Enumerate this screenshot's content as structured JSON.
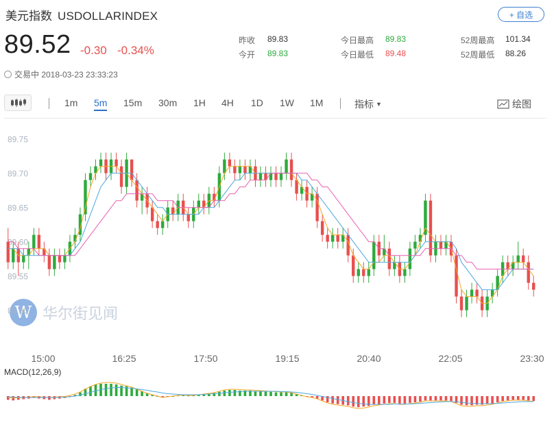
{
  "header": {
    "name": "美元指数",
    "symbol": "USDOLLARINDEX",
    "add_button": "+ 自选",
    "price": "89.52",
    "change": "-0.30",
    "change_pct": "-0.34%",
    "status": "交易中 2018-03-23 23:33:23"
  },
  "stats": [
    {
      "label": "昨收",
      "value": "89.83",
      "tone": "neutral"
    },
    {
      "label": "今开",
      "value": "89.83",
      "tone": "up"
    },
    {
      "label": "今日最高",
      "value": "89.83",
      "tone": "up"
    },
    {
      "label": "今日最低",
      "value": "89.48",
      "tone": "down"
    },
    {
      "label": "52周最高",
      "value": "101.34",
      "tone": "neutral"
    },
    {
      "label": "52周最低",
      "value": "88.26",
      "tone": "neutral"
    }
  ],
  "toolbar": {
    "timeframes": [
      "1m",
      "5m",
      "15m",
      "30m",
      "1H",
      "4H",
      "1D",
      "1W",
      "1M"
    ],
    "active_timeframe": "5m",
    "indicator_label": "指标",
    "draw_label": "绘图"
  },
  "watermark": {
    "logo_letter": "W",
    "text": "华尔街见闻"
  },
  "colors": {
    "up": "#2daa3c",
    "down": "#e84f4f",
    "accent": "#2a6fc9",
    "ma_fast": "#f5a623",
    "ma_mid": "#4aa8e0",
    "ma_slow": "#e85fb0"
  },
  "chart_data": {
    "type": "candlestick",
    "y_ticks": [
      "89.75",
      "89.70",
      "89.65",
      "89.60",
      "89.55",
      "89.50"
    ],
    "ylim": [
      89.4867,
      89.7667
    ],
    "x_ticks": [
      "15:00",
      "16:25",
      "17:50",
      "19:15",
      "20:40",
      "22:05",
      "23:30"
    ],
    "macd_label": "MACD(12,26,9)",
    "candles": [
      [
        89.6,
        89.57,
        89.62,
        89.56
      ],
      [
        89.57,
        89.59,
        89.6,
        89.56
      ],
      [
        89.59,
        89.57,
        89.6,
        89.55
      ],
      [
        89.57,
        89.58,
        89.59,
        89.56
      ],
      [
        89.58,
        89.59,
        89.6,
        89.56
      ],
      [
        89.59,
        89.61,
        89.62,
        89.58
      ],
      [
        89.61,
        89.59,
        89.62,
        89.58
      ],
      [
        89.59,
        89.58,
        89.6,
        89.57
      ],
      [
        89.58,
        89.56,
        89.59,
        89.55
      ],
      [
        89.56,
        89.58,
        89.59,
        89.55
      ],
      [
        89.58,
        89.57,
        89.59,
        89.56
      ],
      [
        89.57,
        89.58,
        89.59,
        89.56
      ],
      [
        89.58,
        89.6,
        89.61,
        89.57
      ],
      [
        89.6,
        89.61,
        89.62,
        89.59
      ],
      [
        89.61,
        89.64,
        89.65,
        89.6
      ],
      [
        89.64,
        89.69,
        89.7,
        89.63
      ],
      [
        89.69,
        89.7,
        89.71,
        89.68
      ],
      [
        89.7,
        89.71,
        89.72,
        89.69
      ],
      [
        89.71,
        89.72,
        89.73,
        89.7
      ],
      [
        89.72,
        89.7,
        89.73,
        89.69
      ],
      [
        89.7,
        89.72,
        89.73,
        89.69
      ],
      [
        89.72,
        89.71,
        89.73,
        89.7
      ],
      [
        89.71,
        89.68,
        89.72,
        89.67
      ],
      [
        89.68,
        89.72,
        89.73,
        89.67
      ],
      [
        89.72,
        89.69,
        89.72,
        89.68
      ],
      [
        89.69,
        89.66,
        89.7,
        89.65
      ],
      [
        89.66,
        89.67,
        89.68,
        89.64
      ],
      [
        89.67,
        89.65,
        89.68,
        89.64
      ],
      [
        89.65,
        89.63,
        89.66,
        89.62
      ],
      [
        89.63,
        89.62,
        89.64,
        89.61
      ],
      [
        89.62,
        89.63,
        89.64,
        89.61
      ],
      [
        89.63,
        89.65,
        89.66,
        89.62
      ],
      [
        89.65,
        89.64,
        89.66,
        89.63
      ],
      [
        89.64,
        89.66,
        89.67,
        89.63
      ],
      [
        89.66,
        89.64,
        89.67,
        89.63
      ],
      [
        89.64,
        89.63,
        89.65,
        89.62
      ],
      [
        89.63,
        89.65,
        89.66,
        89.62
      ],
      [
        89.65,
        89.66,
        89.67,
        89.64
      ],
      [
        89.66,
        89.65,
        89.67,
        89.64
      ],
      [
        89.65,
        89.67,
        89.68,
        89.64
      ],
      [
        89.67,
        89.66,
        89.68,
        89.65
      ],
      [
        89.66,
        89.7,
        89.71,
        89.65
      ],
      [
        89.7,
        89.72,
        89.73,
        89.69
      ],
      [
        89.72,
        89.71,
        89.73,
        89.7
      ],
      [
        89.71,
        89.7,
        89.72,
        89.69
      ],
      [
        89.7,
        89.71,
        89.72,
        89.69
      ],
      [
        89.71,
        89.7,
        89.72,
        89.69
      ],
      [
        89.7,
        89.71,
        89.72,
        89.69
      ],
      [
        89.71,
        89.69,
        89.72,
        89.68
      ],
      [
        89.69,
        89.7,
        89.71,
        89.68
      ],
      [
        89.7,
        89.69,
        89.71,
        89.68
      ],
      [
        89.69,
        89.7,
        89.71,
        89.68
      ],
      [
        89.7,
        89.69,
        89.71,
        89.68
      ],
      [
        89.69,
        89.7,
        89.71,
        89.68
      ],
      [
        89.7,
        89.72,
        89.73,
        89.69
      ],
      [
        89.72,
        89.69,
        89.73,
        89.68
      ],
      [
        89.69,
        89.67,
        89.7,
        89.66
      ],
      [
        89.67,
        89.68,
        89.69,
        89.66
      ],
      [
        89.68,
        89.66,
        89.69,
        89.65
      ],
      [
        89.66,
        89.67,
        89.68,
        89.65
      ],
      [
        89.67,
        89.63,
        89.68,
        89.62
      ],
      [
        89.63,
        89.61,
        89.64,
        89.6
      ],
      [
        89.61,
        89.6,
        89.62,
        89.59
      ],
      [
        89.6,
        89.61,
        89.62,
        89.59
      ],
      [
        89.61,
        89.6,
        89.62,
        89.59
      ],
      [
        89.6,
        89.61,
        89.62,
        89.59
      ],
      [
        89.61,
        89.58,
        89.62,
        89.57
      ],
      [
        89.58,
        89.55,
        89.59,
        89.54
      ],
      [
        89.55,
        89.56,
        89.57,
        89.54
      ],
      [
        89.56,
        89.55,
        89.57,
        89.54
      ],
      [
        89.55,
        89.56,
        89.57,
        89.54
      ],
      [
        89.56,
        89.6,
        89.61,
        89.55
      ],
      [
        89.6,
        89.58,
        89.61,
        89.57
      ],
      [
        89.58,
        89.59,
        89.61,
        89.57
      ],
      [
        89.59,
        89.56,
        89.6,
        89.55
      ],
      [
        89.56,
        89.57,
        89.58,
        89.55
      ],
      [
        89.57,
        89.55,
        89.58,
        89.54
      ],
      [
        89.55,
        89.56,
        89.57,
        89.54
      ],
      [
        89.56,
        89.59,
        89.6,
        89.55
      ],
      [
        89.59,
        89.6,
        89.61,
        89.58
      ],
      [
        89.6,
        89.61,
        89.62,
        89.59
      ],
      [
        89.61,
        89.66,
        89.67,
        89.6
      ],
      [
        89.66,
        89.58,
        89.67,
        89.57
      ],
      [
        89.58,
        89.6,
        89.61,
        89.57
      ],
      [
        89.6,
        89.59,
        89.61,
        89.58
      ],
      [
        89.59,
        89.6,
        89.61,
        89.58
      ],
      [
        89.6,
        89.58,
        89.61,
        89.57
      ],
      [
        89.58,
        89.52,
        89.59,
        89.51
      ],
      [
        89.52,
        89.5,
        89.53,
        89.49
      ],
      [
        89.5,
        89.52,
        89.53,
        89.49
      ],
      [
        89.52,
        89.53,
        89.54,
        89.51
      ],
      [
        89.53,
        89.52,
        89.54,
        89.51
      ],
      [
        89.52,
        89.5,
        89.53,
        89.49
      ],
      [
        89.5,
        89.52,
        89.53,
        89.49
      ],
      [
        89.52,
        89.53,
        89.54,
        89.51
      ],
      [
        89.53,
        89.55,
        89.56,
        89.52
      ],
      [
        89.55,
        89.57,
        89.58,
        89.54
      ],
      [
        89.57,
        89.56,
        89.58,
        89.55
      ],
      [
        89.56,
        89.57,
        89.58,
        89.55
      ],
      [
        89.57,
        89.58,
        89.6,
        89.56
      ],
      [
        89.58,
        89.57,
        89.59,
        89.56
      ],
      [
        89.57,
        89.54,
        89.58,
        89.53
      ],
      [
        89.54,
        89.53,
        89.55,
        89.52
      ]
    ],
    "ma_fast": [
      89.59,
      89.59,
      89.58,
      89.58,
      89.58,
      89.59,
      89.59,
      89.59,
      89.58,
      89.58,
      89.58,
      89.58,
      89.59,
      89.6,
      89.62,
      89.65,
      89.68,
      89.7,
      89.71,
      89.71,
      89.71,
      89.71,
      89.7,
      89.7,
      89.69,
      89.68,
      89.67,
      89.66,
      89.65,
      89.64,
      89.63,
      89.64,
      89.64,
      89.65,
      89.65,
      89.64,
      89.64,
      89.65,
      89.65,
      89.66,
      89.66,
      89.68,
      89.7,
      89.71,
      89.71,
      89.71,
      89.71,
      89.71,
      89.7,
      89.7,
      89.7,
      89.7,
      89.7,
      89.7,
      89.7,
      89.7,
      89.69,
      89.68,
      89.67,
      89.67,
      89.66,
      89.64,
      89.62,
      89.61,
      89.61,
      89.61,
      89.6,
      89.58,
      89.57,
      89.56,
      89.56,
      89.57,
      89.57,
      89.58,
      89.58,
      89.57,
      89.56,
      89.56,
      89.57,
      89.58,
      89.6,
      89.62,
      89.61,
      89.6,
      89.6,
      89.6,
      89.59,
      89.56,
      89.53,
      89.52,
      89.52,
      89.52,
      89.51,
      89.51,
      89.52,
      89.53,
      89.55,
      89.56,
      89.57,
      89.57,
      89.57,
      89.56,
      89.55
    ],
    "ma_mid": [
      89.59,
      89.59,
      89.59,
      89.58,
      89.58,
      89.58,
      89.58,
      89.58,
      89.58,
      89.58,
      89.58,
      89.58,
      89.58,
      89.59,
      89.6,
      89.62,
      89.64,
      89.66,
      89.68,
      89.69,
      89.7,
      89.7,
      89.7,
      89.7,
      89.7,
      89.69,
      89.68,
      89.67,
      89.66,
      89.65,
      89.65,
      89.64,
      89.64,
      89.64,
      89.64,
      89.64,
      89.64,
      89.64,
      89.65,
      89.65,
      89.65,
      89.66,
      89.67,
      89.68,
      89.69,
      89.69,
      89.7,
      89.7,
      89.7,
      89.7,
      89.7,
      89.7,
      89.7,
      89.7,
      89.7,
      89.7,
      89.7,
      89.69,
      89.69,
      89.68,
      89.67,
      89.66,
      89.65,
      89.64,
      89.63,
      89.62,
      89.61,
      89.6,
      89.59,
      89.58,
      89.57,
      89.57,
      89.57,
      89.57,
      89.57,
      89.57,
      89.57,
      89.57,
      89.57,
      89.58,
      89.59,
      89.6,
      89.6,
      89.6,
      89.6,
      89.6,
      89.6,
      89.59,
      89.57,
      89.56,
      89.55,
      89.54,
      89.53,
      89.53,
      89.53,
      89.53,
      89.54,
      89.55,
      89.56,
      89.56,
      89.56,
      89.56,
      89.56
    ],
    "ma_slow": [
      89.6,
      89.6,
      89.59,
      89.59,
      89.59,
      89.59,
      89.58,
      89.58,
      89.58,
      89.58,
      89.58,
      89.58,
      89.58,
      89.58,
      89.59,
      89.6,
      89.61,
      89.62,
      89.63,
      89.64,
      89.65,
      89.66,
      89.66,
      89.67,
      89.67,
      89.67,
      89.67,
      89.67,
      89.67,
      89.66,
      89.66,
      89.66,
      89.66,
      89.65,
      89.65,
      89.65,
      89.65,
      89.65,
      89.65,
      89.65,
      89.66,
      89.66,
      89.66,
      89.67,
      89.67,
      89.68,
      89.68,
      89.69,
      89.69,
      89.69,
      89.69,
      89.7,
      89.7,
      89.7,
      89.7,
      89.7,
      89.7,
      89.7,
      89.7,
      89.69,
      89.69,
      89.68,
      89.68,
      89.67,
      89.66,
      89.65,
      89.64,
      89.63,
      89.62,
      89.61,
      89.6,
      89.6,
      89.59,
      89.59,
      89.58,
      89.58,
      89.58,
      89.58,
      89.58,
      89.58,
      89.58,
      89.59,
      89.59,
      89.59,
      89.59,
      89.59,
      89.59,
      89.58,
      89.58,
      89.57,
      89.57,
      89.56,
      89.56,
      89.56,
      89.56,
      89.56,
      89.56,
      89.56,
      89.56,
      89.56,
      89.56,
      89.56,
      89.56
    ],
    "macd_hist": [
      -0.3,
      -0.35,
      -0.3,
      -0.25,
      -0.2,
      -0.15,
      -0.2,
      -0.25,
      -0.3,
      -0.25,
      -0.2,
      -0.15,
      -0.05,
      0.1,
      0.3,
      0.6,
      0.8,
      0.95,
      1.0,
      1.0,
      1.0,
      0.95,
      0.85,
      0.8,
      0.7,
      0.55,
      0.4,
      0.25,
      0.1,
      0.0,
      -0.1,
      -0.05,
      0.0,
      0.05,
      0.1,
      0.05,
      0.05,
      0.1,
      0.15,
      0.2,
      0.25,
      0.35,
      0.45,
      0.5,
      0.5,
      0.45,
      0.45,
      0.45,
      0.4,
      0.4,
      0.35,
      0.35,
      0.3,
      0.3,
      0.3,
      0.25,
      0.15,
      0.05,
      -0.05,
      -0.1,
      -0.2,
      -0.35,
      -0.5,
      -0.6,
      -0.65,
      -0.7,
      -0.75,
      -0.85,
      -0.9,
      -0.85,
      -0.8,
      -0.7,
      -0.65,
      -0.6,
      -0.55,
      -0.55,
      -0.6,
      -0.6,
      -0.55,
      -0.5,
      -0.45,
      -0.35,
      -0.35,
      -0.35,
      -0.35,
      -0.35,
      -0.4,
      -0.55,
      -0.7,
      -0.75,
      -0.75,
      -0.7,
      -0.7,
      -0.65,
      -0.6,
      -0.5,
      -0.4,
      -0.35,
      -0.3,
      -0.3,
      -0.3,
      -0.35,
      -0.4
    ],
    "macd_dif": [
      -0.2,
      -0.25,
      -0.25,
      -0.2,
      -0.15,
      -0.1,
      -0.1,
      -0.15,
      -0.2,
      -0.15,
      -0.1,
      -0.05,
      0.1,
      0.3,
      0.6,
      1.0,
      1.4,
      1.7,
      1.9,
      2.0,
      2.0,
      1.9,
      1.7,
      1.5,
      1.3,
      1.0,
      0.7,
      0.4,
      0.2,
      0.0,
      -0.2,
      -0.1,
      0.0,
      0.1,
      0.15,
      0.1,
      0.1,
      0.2,
      0.3,
      0.4,
      0.5,
      0.7,
      0.9,
      1.0,
      1.0,
      0.95,
      0.9,
      0.9,
      0.85,
      0.8,
      0.75,
      0.7,
      0.65,
      0.6,
      0.6,
      0.5,
      0.3,
      0.1,
      -0.1,
      -0.2,
      -0.4,
      -0.7,
      -1.0,
      -1.2,
      -1.3,
      -1.4,
      -1.5,
      -1.7,
      -1.8,
      -1.75,
      -1.6,
      -1.4,
      -1.3,
      -1.2,
      -1.1,
      -1.1,
      -1.2,
      -1.2,
      -1.1,
      -1.0,
      -0.9,
      -0.7,
      -0.7,
      -0.7,
      -0.7,
      -0.7,
      -0.8,
      -1.1,
      -1.4,
      -1.5,
      -1.5,
      -1.4,
      -1.4,
      -1.3,
      -1.2,
      -1.0,
      -0.8,
      -0.7,
      -0.6,
      -0.6,
      -0.6,
      -0.7,
      -0.8
    ],
    "macd_dea": [
      -0.1,
      -0.15,
      -0.18,
      -0.2,
      -0.2,
      -0.2,
      -0.18,
      -0.18,
      -0.2,
      -0.2,
      -0.18,
      -0.15,
      -0.1,
      0.0,
      0.15,
      0.35,
      0.55,
      0.75,
      0.95,
      1.1,
      1.2,
      1.25,
      1.25,
      1.2,
      1.15,
      1.05,
      0.95,
      0.85,
      0.7,
      0.6,
      0.45,
      0.35,
      0.3,
      0.25,
      0.2,
      0.2,
      0.2,
      0.2,
      0.25,
      0.3,
      0.35,
      0.4,
      0.5,
      0.55,
      0.6,
      0.65,
      0.7,
      0.7,
      0.7,
      0.7,
      0.7,
      0.7,
      0.7,
      0.65,
      0.65,
      0.6,
      0.55,
      0.45,
      0.35,
      0.25,
      0.1,
      -0.05,
      -0.2,
      -0.35,
      -0.5,
      -0.65,
      -0.8,
      -0.95,
      -1.05,
      -1.15,
      -1.2,
      -1.2,
      -1.2,
      -1.2,
      -1.2,
      -1.15,
      -1.15,
      -1.15,
      -1.15,
      -1.1,
      -1.05,
      -1.0,
      -0.95,
      -0.9,
      -0.85,
      -0.8,
      -0.8,
      -0.85,
      -0.9,
      -1.0,
      -1.05,
      -1.1,
      -1.1,
      -1.1,
      -1.1,
      -1.05,
      -1.0,
      -0.95,
      -0.9,
      -0.85,
      -0.8,
      -0.8,
      -0.8
    ]
  }
}
